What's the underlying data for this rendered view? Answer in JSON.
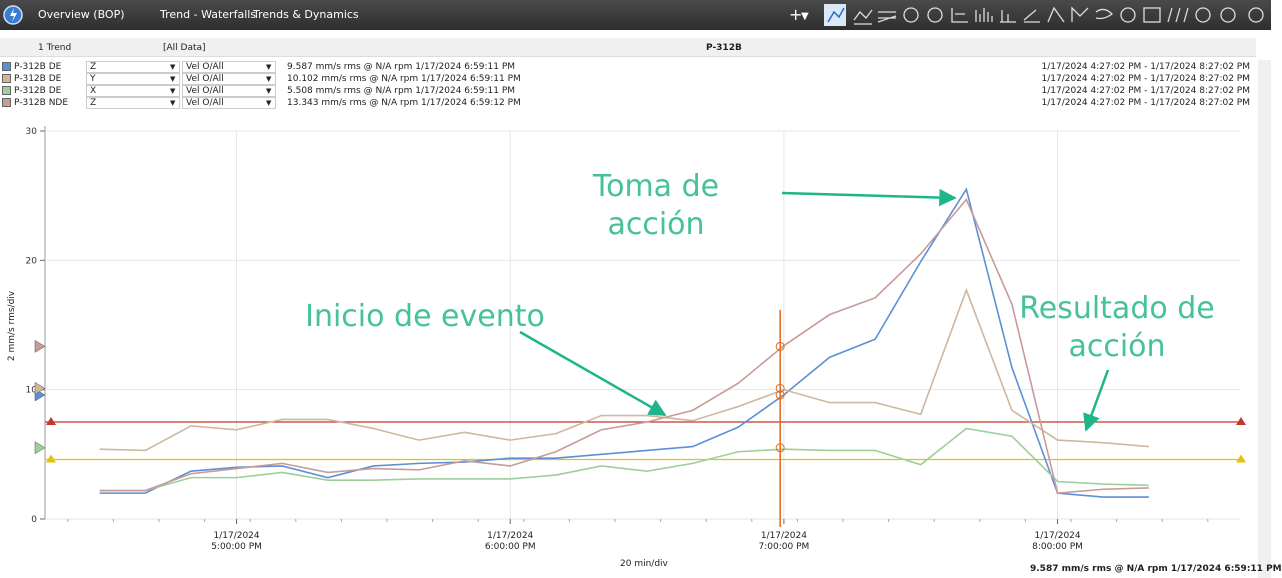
{
  "toolbar": {
    "tabs": [
      "Overview (BOP)",
      "Trend - Waterfalls",
      "Trends & Dynamics"
    ]
  },
  "header": {
    "count": "1 Trend",
    "filter": "[All Data]",
    "asset": "P-312B"
  },
  "status": "9.587 mm/s rms @ N/A rpm 1/17/2024 6:59:11 PM",
  "chart_data": {
    "type": "line",
    "y_label": "2 mm/s rms/div",
    "x_label": "20 min/div",
    "xlim": [
      "2024-01-17T16:18:00",
      "2024-01-17T20:40:00"
    ],
    "xticks": [
      {
        "value": "2024-01-17T17:00:00",
        "label": "1/17/2024\n5:00:00 PM"
      },
      {
        "value": "2024-01-17T18:00:00",
        "label": "1/17/2024\n6:00:00 PM"
      },
      {
        "value": "2024-01-17T19:00:00",
        "label": "1/17/2024\n7:00:00 PM"
      },
      {
        "value": "2024-01-17T20:00:00",
        "label": "1/17/2024\n8:00:00 PM"
      }
    ],
    "ylim": [
      0,
      30
    ],
    "yticks": [
      0,
      10,
      20,
      30
    ],
    "grid": true,
    "cursor_x": "2024-01-17T18:59:11",
    "reference_lines": [
      {
        "value": 7.5,
        "color": "#c0392b"
      },
      {
        "value": 4.6,
        "color": "#e6c200"
      }
    ],
    "x": [
      "2024-01-17T16:30:00",
      "2024-01-17T16:40:00",
      "2024-01-17T16:50:00",
      "2024-01-17T17:00:00",
      "2024-01-17T17:10:00",
      "2024-01-17T17:20:00",
      "2024-01-17T17:30:00",
      "2024-01-17T17:40:00",
      "2024-01-17T17:50:00",
      "2024-01-17T18:00:00",
      "2024-01-17T18:10:00",
      "2024-01-17T18:20:00",
      "2024-01-17T18:30:00",
      "2024-01-17T18:40:00",
      "2024-01-17T18:50:00",
      "2024-01-17T19:00:00",
      "2024-01-17T19:10:00",
      "2024-01-17T19:20:00",
      "2024-01-17T19:30:00",
      "2024-01-17T19:40:00",
      "2024-01-17T19:50:00",
      "2024-01-17T20:00:00",
      "2024-01-17T20:10:00",
      "2024-01-17T20:20:00"
    ],
    "series": [
      {
        "name": "P-312B DE",
        "direction": "Z",
        "measure": "Vel O/All",
        "reading": "9.587 mm/s rms @ N/A rpm 1/17/2024 6:59:11 PM",
        "range": "1/17/2024 4:27:02 PM - 1/17/2024 8:27:02 PM",
        "color": "#5b8fd6",
        "cursor_value": 9.587,
        "values": [
          2.0,
          2.0,
          3.7,
          4.0,
          4.1,
          3.2,
          4.1,
          4.3,
          4.4,
          4.7,
          4.7,
          5.0,
          5.3,
          5.6,
          7.1,
          9.6,
          12.5,
          13.9,
          19.9,
          25.5,
          11.7,
          2.0,
          1.7,
          1.7
        ]
      },
      {
        "name": "P-312B DE",
        "direction": "Y",
        "measure": "Vel O/All",
        "reading": "10.102 mm/s rms @ N/A rpm 1/17/2024 6:59:11 PM",
        "range": "1/17/2024 4:27:02 PM - 1/17/2024 8:27:02 PM",
        "color": "#cdb89e",
        "cursor_value": 10.102,
        "values": [
          5.4,
          5.3,
          7.2,
          6.9,
          7.7,
          7.7,
          7.0,
          6.1,
          6.7,
          6.1,
          6.6,
          8.0,
          8.0,
          7.6,
          8.7,
          10.0,
          9.0,
          9.0,
          8.1,
          17.7,
          8.4,
          6.1,
          5.9,
          5.6
        ]
      },
      {
        "name": "P-312B DE",
        "direction": "X",
        "measure": "Vel O/All",
        "reading": "5.508 mm/s rms @ N/A rpm 1/17/2024 6:59:11 PM",
        "range": "1/17/2024 4:27:02 PM - 1/17/2024 8:27:02 PM",
        "color": "#9ccf9a",
        "cursor_value": 5.508,
        "values": [
          2.2,
          2.2,
          3.2,
          3.2,
          3.6,
          3.0,
          3.0,
          3.1,
          3.1,
          3.1,
          3.4,
          4.1,
          3.7,
          4.3,
          5.2,
          5.4,
          5.3,
          5.3,
          4.2,
          7.0,
          6.4,
          2.9,
          2.7,
          2.6
        ]
      },
      {
        "name": "P-312B NDE",
        "direction": "Z",
        "measure": "Vel O/All",
        "reading": "13.343 mm/s rms @ N/A rpm 1/17/2024 6:59:12 PM",
        "range": "1/17/2024 4:27:02 PM - 1/17/2024 8:27:02 PM",
        "color": "#c89a98",
        "cursor_value": 13.343,
        "values": [
          2.2,
          2.2,
          3.5,
          3.9,
          4.3,
          3.6,
          3.9,
          3.8,
          4.5,
          4.1,
          5.2,
          6.9,
          7.5,
          8.4,
          10.5,
          13.4,
          15.8,
          17.1,
          20.5,
          24.7,
          16.6,
          2.0,
          2.3,
          2.4
        ]
      }
    ],
    "annotations": [
      {
        "text": "Toma de acción"
      },
      {
        "text": "Inicio de evento"
      },
      {
        "text": "Resultado de\nacción"
      }
    ]
  }
}
